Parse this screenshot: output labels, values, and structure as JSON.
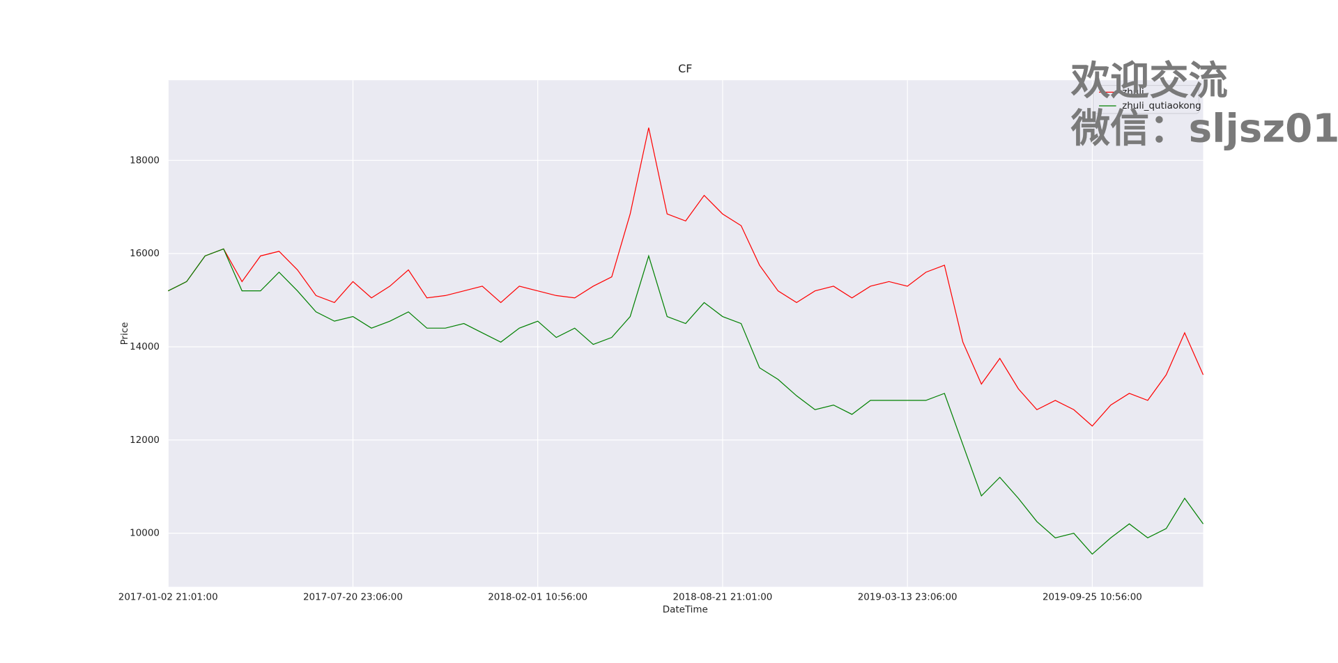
{
  "chart_data": {
    "type": "line",
    "title": "CF",
    "xlabel": "DateTime",
    "ylabel": "Price",
    "categories": [
      "2017-01-02 21:01:00",
      null,
      null,
      null,
      null,
      null,
      null,
      null,
      null,
      null,
      "2017-07-20 23:06:00",
      null,
      null,
      null,
      null,
      null,
      null,
      null,
      null,
      null,
      "2018-02-01 10:56:00",
      null,
      null,
      null,
      null,
      null,
      null,
      null,
      null,
      null,
      "2018-08-21 21:01:00",
      null,
      null,
      null,
      null,
      null,
      null,
      null,
      null,
      null,
      "2019-03-13 23:06:00",
      null,
      null,
      null,
      null,
      null,
      null,
      null,
      null,
      null,
      "2019-09-25 10:56:00",
      null,
      null,
      null,
      null,
      null,
      null
    ],
    "series": [
      {
        "name": "zhuli",
        "color": "#ff0000",
        "values": [
          15200,
          15400,
          15950,
          16100,
          15400,
          15950,
          16050,
          15650,
          15100,
          14950,
          15400,
          15050,
          15300,
          15650,
          15050,
          15100,
          15200,
          15300,
          14950,
          15300,
          15200,
          15100,
          15050,
          15300,
          15500,
          16850,
          18700,
          16850,
          16700,
          17250,
          16850,
          16600,
          15750,
          15200,
          14950,
          15200,
          15300,
          15050,
          15300,
          15400,
          15300,
          15600,
          15750,
          14100,
          13200,
          13750,
          13100,
          12650,
          12850,
          12650,
          12300,
          12750,
          13000,
          12850,
          13400,
          14300,
          13400
        ]
      },
      {
        "name": "zhuli_qutiaokong",
        "color": "#008000",
        "values": [
          15200,
          15400,
          15950,
          16100,
          15200,
          15200,
          15600,
          15200,
          14750,
          14550,
          14650,
          14400,
          14550,
          14750,
          14400,
          14400,
          14500,
          14300,
          14100,
          14400,
          14550,
          14200,
          14400,
          14050,
          14200,
          14650,
          15950,
          14650,
          14500,
          14950,
          14650,
          14500,
          13550,
          13300,
          12950,
          12650,
          12750,
          12550,
          12850,
          12850,
          12850,
          12850,
          13000,
          11900,
          10800,
          11200,
          10750,
          10250,
          9900,
          10000,
          9550,
          9900,
          10200,
          9900,
          10100,
          10750,
          10200
        ]
      }
    ],
    "ylim": [
      8850,
      19720
    ],
    "yticks": [
      10000,
      12000,
      14000,
      16000,
      18000
    ],
    "grid": true,
    "legend": "upper right",
    "watermark": [
      "欢迎交流",
      "微信：sljsz01"
    ]
  }
}
